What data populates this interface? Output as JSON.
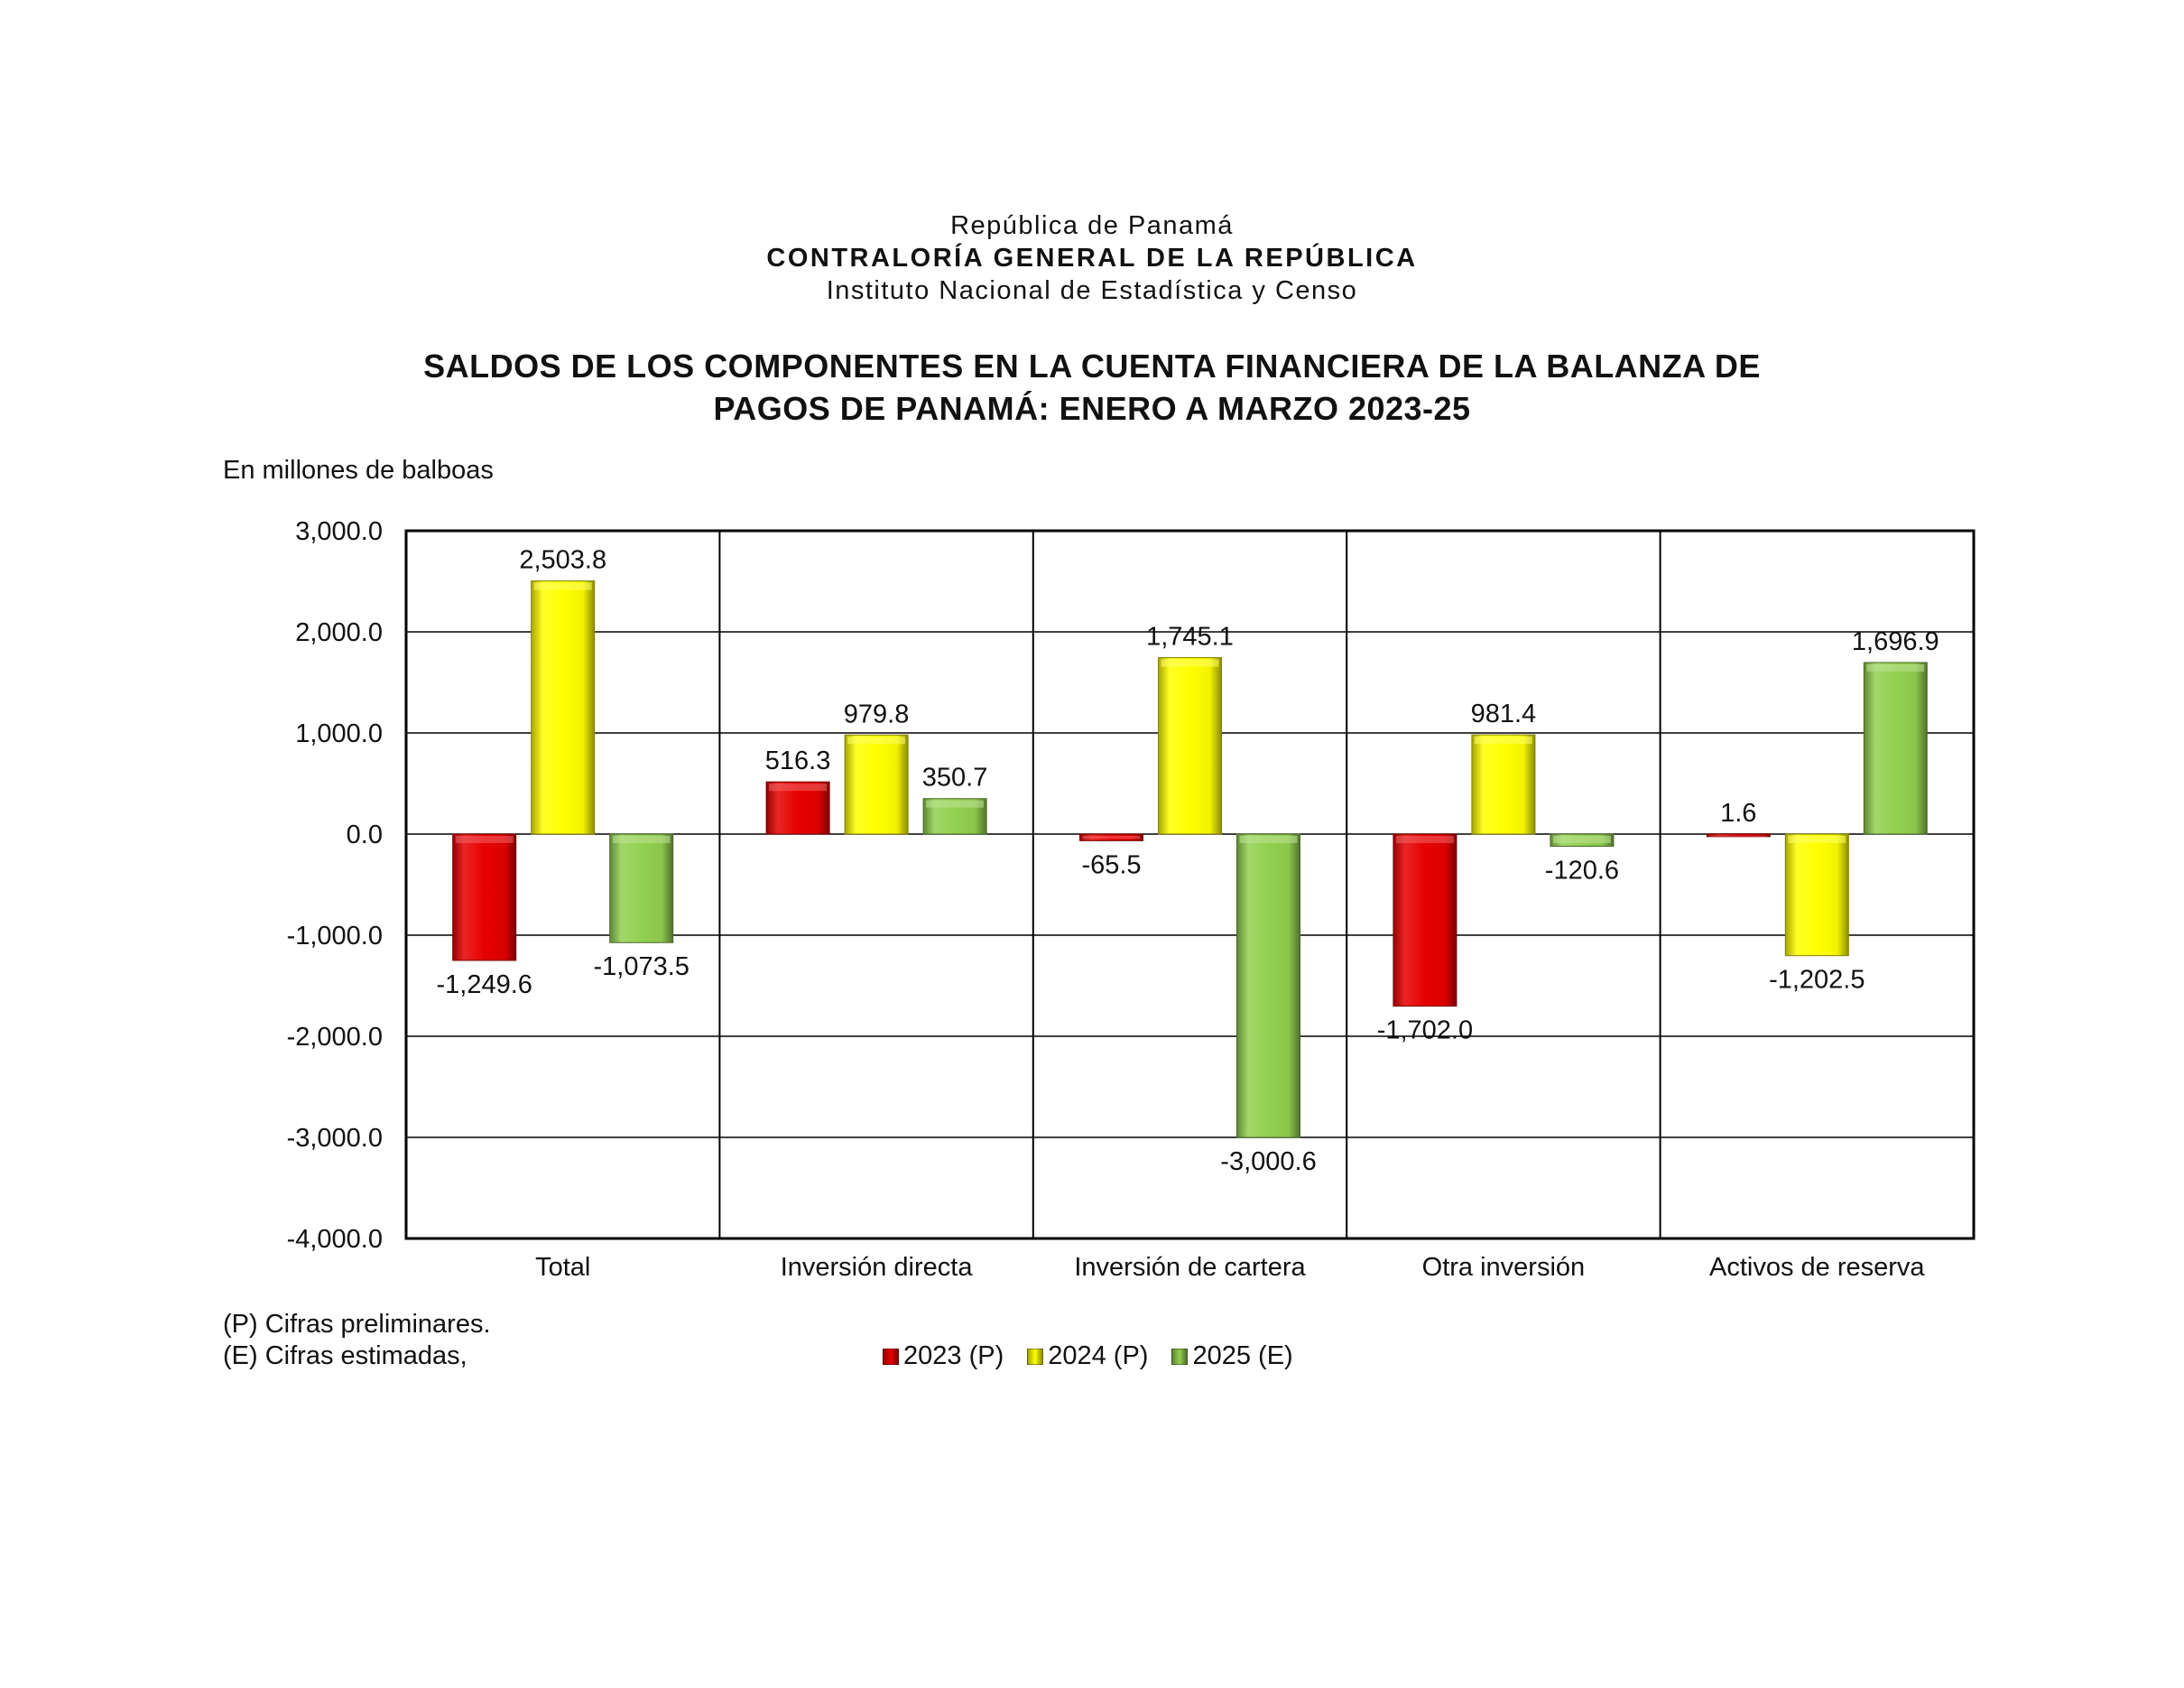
{
  "header": {
    "country": "República de Panamá",
    "organization": "CONTRALORÍA GENERAL DE LA REPÚBLICA",
    "institute": "Instituto Nacional de Estadística y Censo",
    "title_line1": "SALDOS DE LOS COMPONENTES EN LA CUENTA FINANCIERA DE LA BALANZA DE",
    "title_line2": "PAGOS DE PANAMÁ: ENERO A MARZO 2023-25"
  },
  "unit_label": "En millones de balboas",
  "notes": {
    "preliminary": "(P) Cifras preliminares.",
    "estimated": "(E) Cifras estimadas,"
  },
  "chart_data": {
    "type": "bar",
    "categories": [
      "Total",
      "Inversión directa",
      "Inversión de cartera",
      "Otra inversión",
      "Activos de reserva"
    ],
    "series": [
      {
        "name": "2023 (P)",
        "color": "#e60000",
        "values": [
          -1249.6,
          516.3,
          -65.5,
          -1702.0,
          1.6
        ],
        "labels": [
          "-1,249.6",
          "516.3",
          "-65.5",
          "-1,702.0",
          "1.6"
        ]
      },
      {
        "name": "2024 (P)",
        "color": "#ffff00",
        "values": [
          2503.8,
          979.8,
          1745.1,
          981.4,
          -1202.5
        ],
        "labels": [
          "2,503.8",
          "979.8",
          "1,745.1",
          "981.4",
          "-1,202.5"
        ]
      },
      {
        "name": "2025 (E)",
        "color": "#92d050",
        "values": [
          -1073.5,
          350.7,
          -3000.6,
          -120.6,
          1696.9
        ],
        "labels": [
          "-1,073.5",
          "350.7",
          "-3,000.6",
          "-120.6",
          "1,696.9"
        ]
      }
    ],
    "ylim": [
      -4000,
      3000
    ],
    "y_ticks": [
      3000,
      2000,
      1000,
      0,
      -1000,
      -2000,
      -3000,
      -4000
    ],
    "y_tick_labels": [
      "3,000.0",
      "2,000.0",
      "1,000.0",
      "0.0",
      "-1,000.0",
      "-2,000.0",
      "-3,000.0",
      "-4,000.0"
    ],
    "grid": true,
    "legend_position": "bottom-center"
  }
}
